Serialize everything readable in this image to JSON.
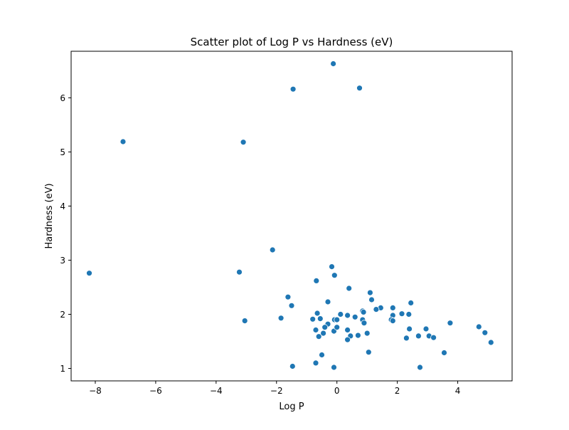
{
  "chart_data": {
    "type": "scatter",
    "title": "Scatter plot of Log P vs Hardness  (eV)",
    "xlabel": "Log P",
    "ylabel": "Hardness  (eV)",
    "xlim": [
      -8.8,
      5.8
    ],
    "ylim": [
      0.77,
      6.86
    ],
    "xticks": [
      -8,
      -6,
      -4,
      -2,
      0,
      2,
      4
    ],
    "xtick_labels": [
      "−8",
      "−6",
      "−4",
      "−2",
      "0",
      "2",
      "4"
    ],
    "yticks": [
      1,
      2,
      3,
      4,
      5,
      6
    ],
    "ytick_labels": [
      "1",
      "2",
      "3",
      "4",
      "5",
      "6"
    ],
    "grid": false,
    "marker_color": "#1f77b4",
    "points": [
      {
        "x": -0.12,
        "y": 6.63
      },
      {
        "x": -1.45,
        "y": 6.16
      },
      {
        "x": 0.75,
        "y": 6.18
      },
      {
        "x": -7.08,
        "y": 5.19
      },
      {
        "x": -3.1,
        "y": 5.18
      },
      {
        "x": -2.13,
        "y": 3.19
      },
      {
        "x": -8.2,
        "y": 2.76
      },
      {
        "x": -3.23,
        "y": 2.78
      },
      {
        "x": -3.05,
        "y": 1.88
      },
      {
        "x": -0.17,
        "y": 2.88
      },
      {
        "x": -0.08,
        "y": 2.72
      },
      {
        "x": -0.68,
        "y": 2.62
      },
      {
        "x": 0.4,
        "y": 2.48
      },
      {
        "x": -1.62,
        "y": 2.32
      },
      {
        "x": -0.3,
        "y": 2.23
      },
      {
        "x": -1.5,
        "y": 2.16
      },
      {
        "x": 1.1,
        "y": 2.4
      },
      {
        "x": 1.15,
        "y": 2.27
      },
      {
        "x": 2.45,
        "y": 2.21
      },
      {
        "x": 1.45,
        "y": 2.12
      },
      {
        "x": 1.3,
        "y": 2.09
      },
      {
        "x": 1.85,
        "y": 2.12
      },
      {
        "x": -1.85,
        "y": 1.93
      },
      {
        "x": -0.8,
        "y": 1.91
      },
      {
        "x": -0.65,
        "y": 2.02
      },
      {
        "x": -0.55,
        "y": 1.92
      },
      {
        "x": -0.3,
        "y": 1.82
      },
      {
        "x": -0.08,
        "y": 1.9
      },
      {
        "x": 0.0,
        "y": 1.9
      },
      {
        "x": 0.12,
        "y": 2.0
      },
      {
        "x": 0.35,
        "y": 1.98
      },
      {
        "x": 0.6,
        "y": 1.95
      },
      {
        "x": 0.85,
        "y": 2.06
      },
      {
        "x": 0.88,
        "y": 2.04
      },
      {
        "x": 0.85,
        "y": 1.9
      },
      {
        "x": 0.9,
        "y": 1.84
      },
      {
        "x": 1.85,
        "y": 1.98
      },
      {
        "x": 1.8,
        "y": 1.9
      },
      {
        "x": 1.85,
        "y": 1.88
      },
      {
        "x": 2.15,
        "y": 2.01
      },
      {
        "x": 2.38,
        "y": 2.0
      },
      {
        "x": -0.7,
        "y": 1.71
      },
      {
        "x": -0.4,
        "y": 1.76
      },
      {
        "x": -0.1,
        "y": 1.69
      },
      {
        "x": 0.0,
        "y": 1.76
      },
      {
        "x": 0.35,
        "y": 1.71
      },
      {
        "x": -0.6,
        "y": 1.59
      },
      {
        "x": -0.45,
        "y": 1.65
      },
      {
        "x": 0.45,
        "y": 1.6
      },
      {
        "x": 0.35,
        "y": 1.53
      },
      {
        "x": 0.7,
        "y": 1.61
      },
      {
        "x": 1.0,
        "y": 1.65
      },
      {
        "x": 2.4,
        "y": 1.73
      },
      {
        "x": 2.3,
        "y": 1.56
      },
      {
        "x": 2.7,
        "y": 1.6
      },
      {
        "x": 2.95,
        "y": 1.73
      },
      {
        "x": 3.05,
        "y": 1.6
      },
      {
        "x": 3.2,
        "y": 1.57
      },
      {
        "x": 3.75,
        "y": 1.84
      },
      {
        "x": 4.7,
        "y": 1.77
      },
      {
        "x": 4.9,
        "y": 1.66
      },
      {
        "x": 5.1,
        "y": 1.48
      },
      {
        "x": 3.55,
        "y": 1.29
      },
      {
        "x": 1.05,
        "y": 1.3
      },
      {
        "x": -0.5,
        "y": 1.25
      },
      {
        "x": -1.47,
        "y": 1.04
      },
      {
        "x": -0.7,
        "y": 1.1
      },
      {
        "x": -0.1,
        "y": 1.02
      },
      {
        "x": 2.75,
        "y": 1.02
      }
    ]
  }
}
